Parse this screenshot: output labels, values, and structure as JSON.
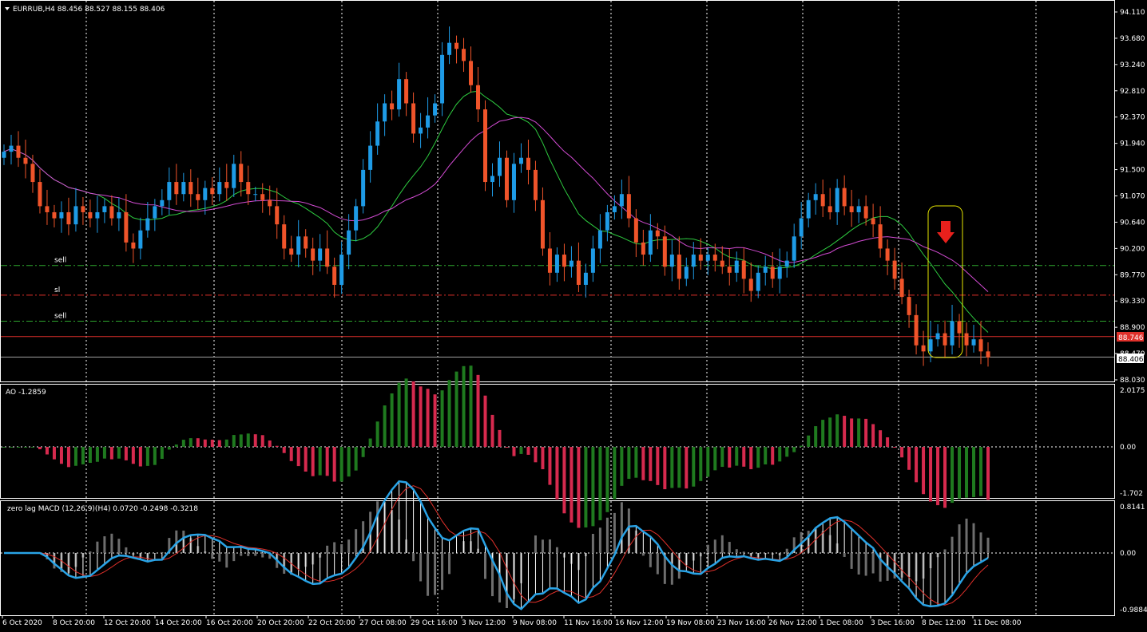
{
  "main_chart": {
    "symbol_header": "EURRUB,H4  88.456 88.527 88.155 88.406",
    "price_axis_labels": [
      "94.110",
      "93.680",
      "93.240",
      "92.810",
      "92.370",
      "91.940",
      "91.500",
      "91.070",
      "90.640",
      "90.200",
      "89.770",
      "89.330",
      "88.900",
      "88.470",
      "88.030"
    ],
    "current_price_tag": "88.406",
    "alert_price_tag": "88.746",
    "lines": [
      {
        "label": "sell",
        "price": 89.92,
        "color": "#2ea52e",
        "style": "dashdot"
      },
      {
        "label": "sl",
        "price": 89.43,
        "color": "#e0302a",
        "style": "dashdot"
      },
      {
        "label": "sell",
        "price": 89.0,
        "color": "#2ea52e",
        "style": "dashdot"
      },
      {
        "label": "",
        "price": 88.746,
        "color": "#e0302a",
        "style": "solid"
      },
      {
        "label": "",
        "price": 88.406,
        "color": "#a0a0a0",
        "style": "solid"
      }
    ],
    "bull_color": "#1e9be6",
    "bear_color": "#f0542a",
    "ma_fast_color": "#2ecc40",
    "ma_slow_color": "#d24bd2",
    "highlight_color": "#e6e600",
    "arrow_color": "#e8201c"
  },
  "ao_panel": {
    "header": "AO -1.2859",
    "axis_labels": [
      "2.0175",
      "0.00",
      "-1.702"
    ],
    "up_color": "#1f7a1f",
    "down_color": "#d62a4e"
  },
  "macd_panel": {
    "header": "zero lag MACD (12,26,9)(H4) 0.0720 -0.2498 -0.3218",
    "axis_labels": [
      "0.8141",
      "0.00",
      "-0.9884"
    ],
    "macd_color": "#29a3e6",
    "signal_color": "#e0302a",
    "hist_color": "#6e6e6e"
  },
  "time_axis_labels": [
    "6 Oct 2020",
    "8 Oct 20:00",
    "12 Oct 20:00",
    "14 Oct 20:00",
    "16 Oct 20:00",
    "20 Oct 20:00",
    "22 Oct 20:00",
    "27 Oct 08:00",
    "29 Oct 16:00",
    "3 Nov 12:00",
    "9 Nov 08:00",
    "11 Nov 16:00",
    "16 Nov 12:00",
    "19 Nov 08:00",
    "23 Nov 16:00",
    "26 Nov 12:00",
    "1 Dec 08:00",
    "3 Dec 16:00",
    "8 Dec 12:00",
    "11 Dec 08:00"
  ]
}
